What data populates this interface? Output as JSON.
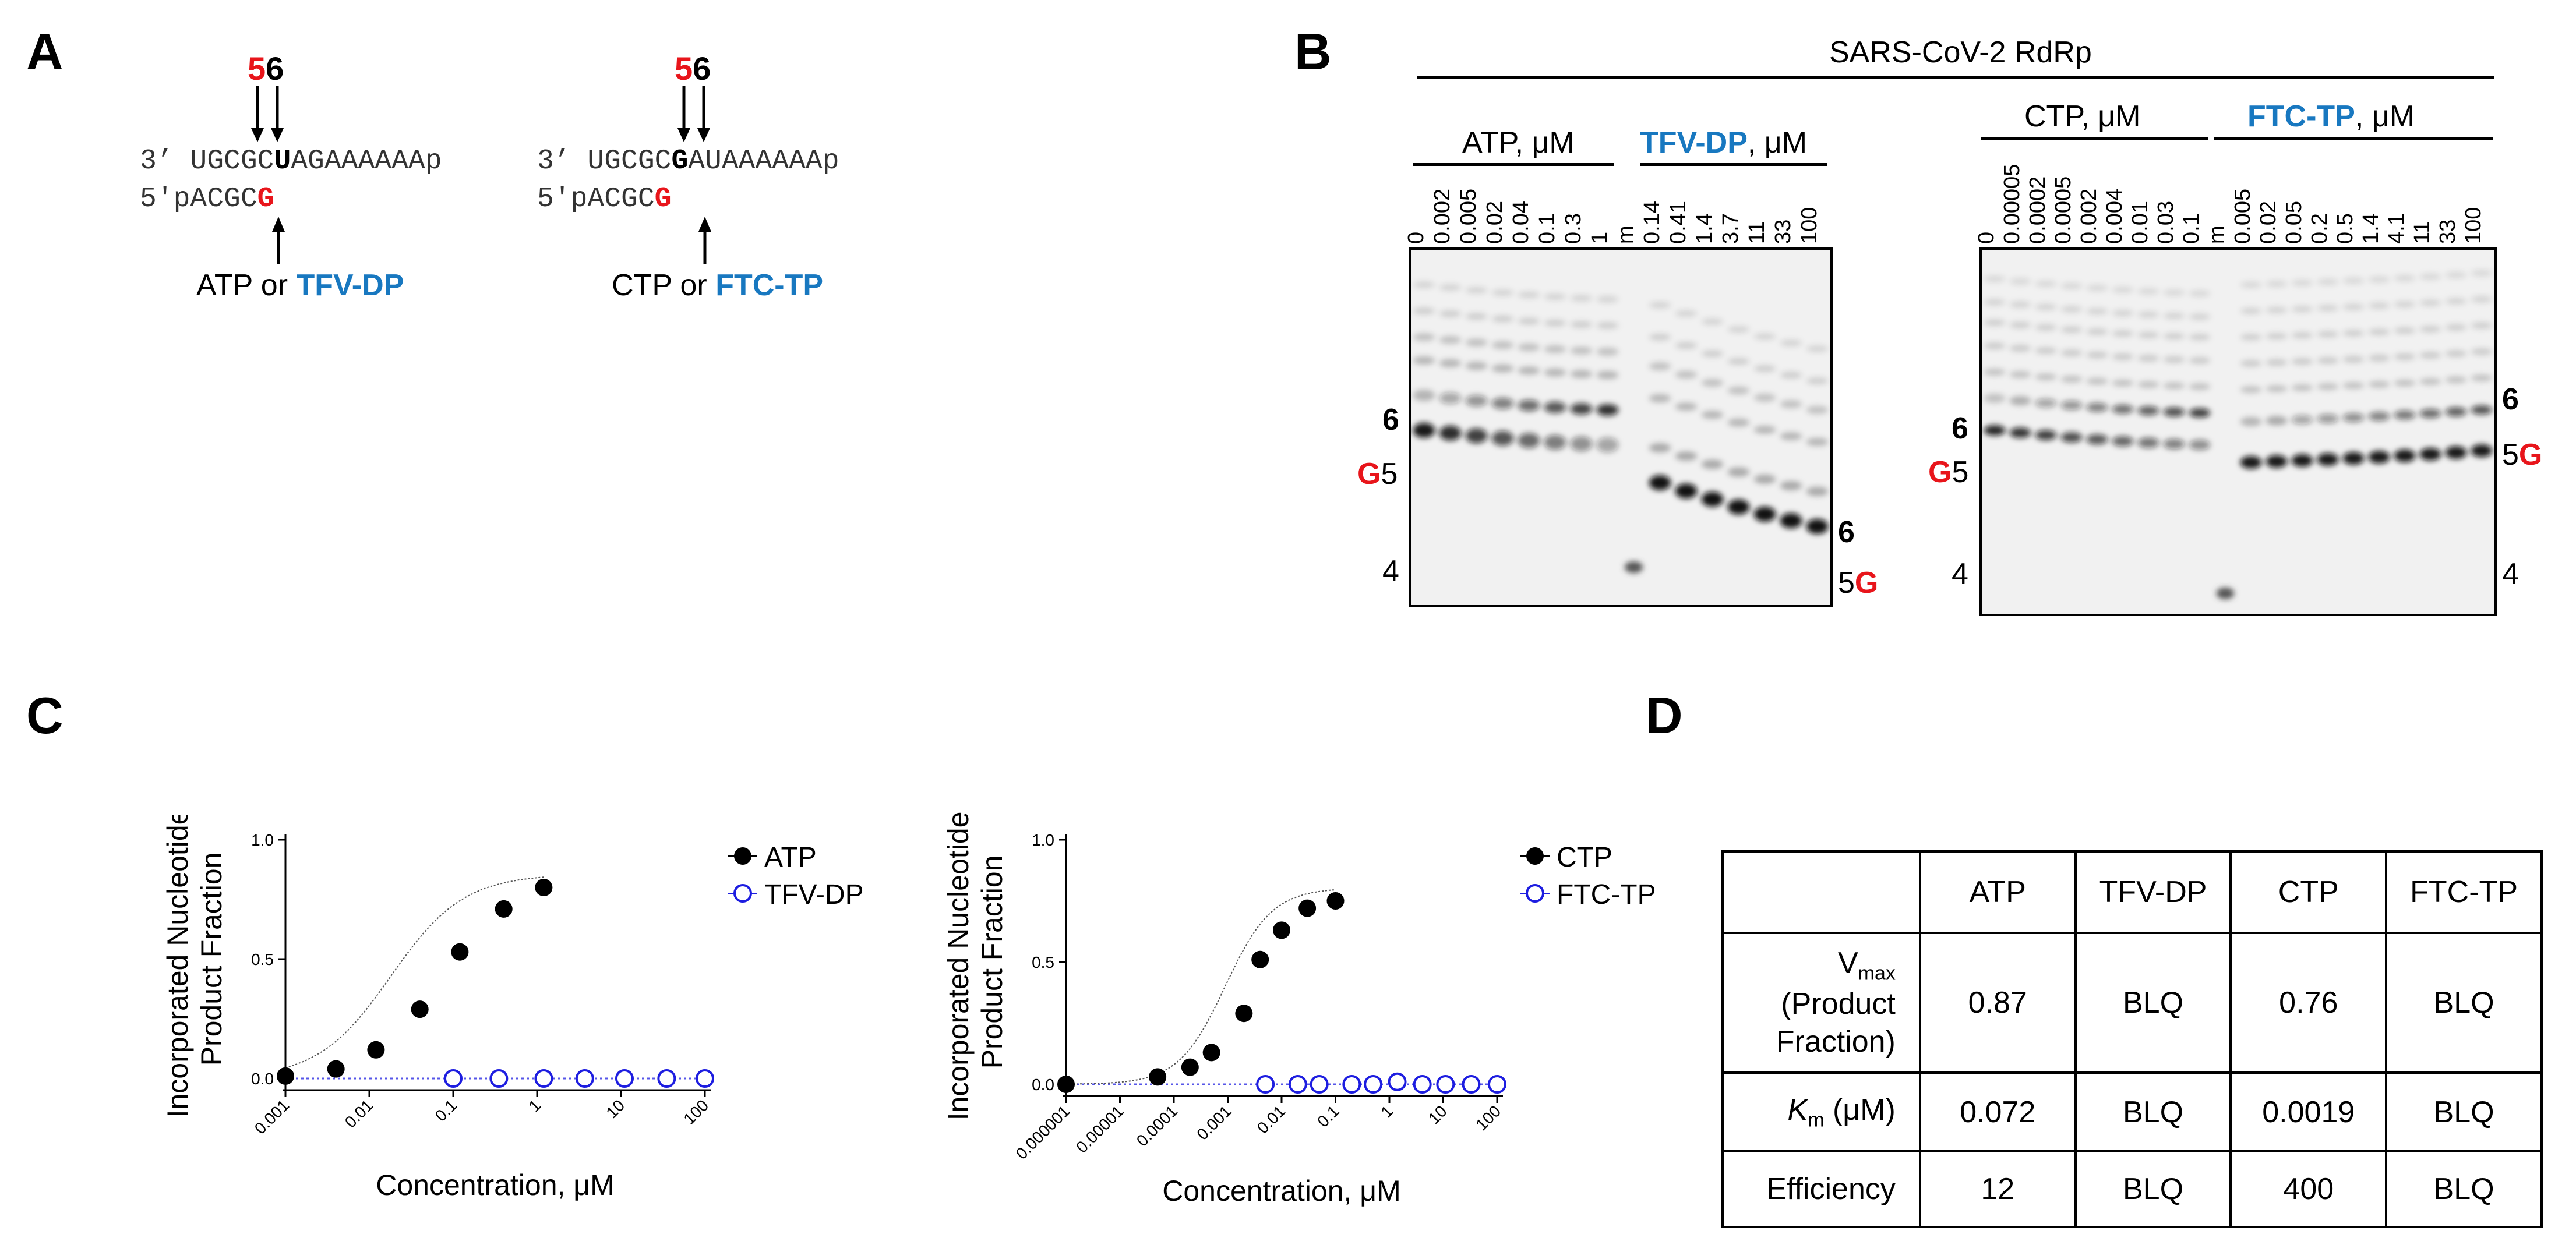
{
  "panels": {
    "a": "A",
    "b": "B",
    "c": "C",
    "d": "D"
  },
  "colors": {
    "red": "#e8151b",
    "blue": "#1878c0",
    "open_marker": "#1d1de0"
  },
  "panel_a": {
    "left": {
      "pos5": "5",
      "pos6": "6",
      "template_prefix": "3’ UGCGC",
      "template_bold": "U",
      "template_suffix": "AGAAAAAAp",
      "primer_prefix": "5'pACGC",
      "primer_red": "G",
      "substrate_or": "ATP or",
      "substrate_analog": "TFV-DP"
    },
    "right": {
      "pos5": "5",
      "pos6": "6",
      "template_prefix": "3’ UGCGC",
      "template_bold": "G",
      "template_suffix": "AUAAAAAAp",
      "primer_prefix": "5'pACGC",
      "primer_red": "G",
      "substrate_or": "CTP or",
      "substrate_analog": "FTC-TP"
    }
  },
  "panel_b": {
    "title": "SARS-CoV-2 RdRp",
    "gel1": {
      "group1_name": "ATP",
      "group1_unit": ", μM",
      "group2_name": "TFV-DP",
      "group2_unit": ", μM",
      "lanes1": [
        "0",
        "0.002",
        "0.005",
        "0.02",
        "0.04",
        "0.1",
        "0.3",
        "1"
      ],
      "marker": "m",
      "lanes2": [
        "0.14",
        "0.41",
        "1.4",
        "3.7",
        "11",
        "33",
        "100"
      ],
      "left_labels": {
        "six": "6",
        "g": "G",
        "five": "5",
        "four": "4"
      },
      "right_labels": {
        "six": "6",
        "five": "5",
        "g": "G"
      }
    },
    "gel2": {
      "group1_name": "CTP",
      "group1_unit": ", μM",
      "group2_name": "FTC-TP",
      "group2_unit": ", μM",
      "lanes1": [
        "0",
        "0.00005",
        "0.0002",
        "0.0005",
        "0.002",
        "0.004",
        "0.01",
        "0.03",
        "0.1"
      ],
      "marker": "m",
      "lanes2": [
        "0.005",
        "0.02",
        "0.05",
        "0.2",
        "0.5",
        "1.4",
        "4.1",
        "11",
        "33",
        "100"
      ],
      "left_labels": {
        "six": "6",
        "g": "G",
        "five": "5",
        "four": "4"
      },
      "right_labels": {
        "six": "6",
        "five": "5",
        "g": "G",
        "four": "4"
      }
    }
  },
  "chart_data": [
    {
      "type": "scatter",
      "xlabel": "Concentration, μM",
      "ylabel": [
        "Incorporated Nucleotide,",
        "Product Fraction"
      ],
      "xscale": "log",
      "xlim": [
        0.001,
        100
      ],
      "ylim": [
        0,
        1
      ],
      "xticks": [
        "0.001",
        "0.01",
        "0.1",
        "1",
        "10",
        "100"
      ],
      "yticks": [
        "0.0",
        "0.5",
        "1.0"
      ],
      "legend": "right",
      "series": [
        {
          "name": "ATP",
          "marker": "filled",
          "x": [
            0.001,
            0.004,
            0.012,
            0.04,
            0.12,
            0.4,
            1.2
          ],
          "y": [
            0.01,
            0.04,
            0.12,
            0.29,
            0.53,
            0.71,
            0.8
          ]
        },
        {
          "name": "TFV-DP",
          "marker": "open",
          "x": [
            0.1,
            0.35,
            1.2,
            3.7,
            11,
            35,
            100
          ],
          "y": [
            0,
            0,
            0,
            0,
            0,
            0,
            0
          ]
        }
      ]
    },
    {
      "type": "scatter",
      "xlabel": "Concentration, μM",
      "ylabel": [
        "Incorporated Nucleotide,",
        "Product Fraction"
      ],
      "xscale": "log",
      "xlim": [
        1e-06,
        100
      ],
      "ylim": [
        0,
        1
      ],
      "xticks": [
        "0.000001",
        "0.00001",
        "0.0001",
        "0.001",
        "0.01",
        "0.1",
        "1",
        "10",
        "100"
      ],
      "yticks": [
        "0.0",
        "0.5",
        "1.0"
      ],
      "legend": "right",
      "series": [
        {
          "name": "CTP",
          "marker": "filled",
          "x": [
            1e-06,
            5e-05,
            0.0002,
            0.0005,
            0.002,
            0.004,
            0.01,
            0.03,
            0.1
          ],
          "y": [
            0,
            0.03,
            0.07,
            0.13,
            0.29,
            0.51,
            0.63,
            0.72,
            0.75
          ]
        },
        {
          "name": "FTC-TP",
          "marker": "open",
          "x": [
            0.005,
            0.02,
            0.05,
            0.2,
            0.5,
            1.4,
            4.1,
            11,
            33,
            100
          ],
          "y": [
            0,
            0,
            0,
            0,
            0,
            0.01,
            0,
            0,
            0,
            0
          ]
        }
      ]
    }
  ],
  "panel_d": {
    "headers": [
      "",
      "ATP",
      "TFV-DP",
      "CTP",
      "FTC-TP"
    ],
    "vmax_label": {
      "v": "V",
      "sub": "max",
      "line2": "(Product",
      "line3": "Fraction)"
    },
    "vmax_values": [
      "0.87",
      "BLQ",
      "0.76",
      "BLQ"
    ],
    "km_label": {
      "k": "K",
      "sub": "m",
      "rest": " (μM)"
    },
    "km_values": [
      "0.072",
      "BLQ",
      "0.0019",
      "BLQ"
    ],
    "eff_label": "Efficiency",
    "eff_values": [
      "12",
      "BLQ",
      "400",
      "BLQ"
    ]
  }
}
